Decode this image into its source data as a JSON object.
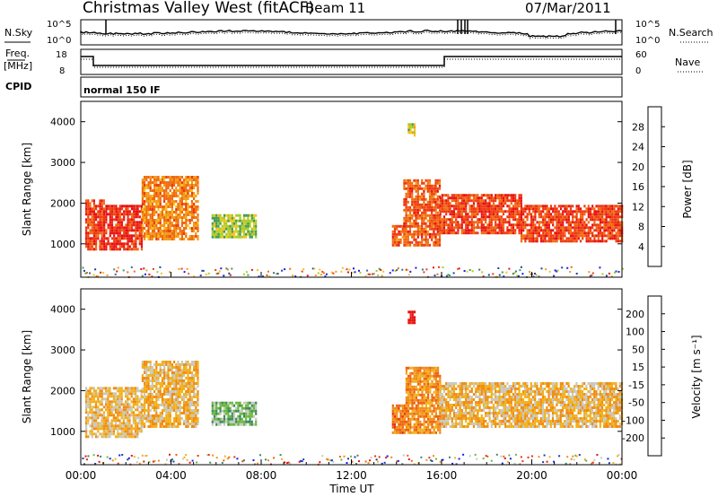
{
  "header": {
    "title": "Christmas Valley West (fitACF)",
    "beam": "Beam 11",
    "date": "07/Mar/2011"
  },
  "param_panels": {
    "nsky_label": "N.Sky",
    "nsky_ticks": [
      "10^5",
      "10^0"
    ],
    "nsearch_label": "N.Search",
    "nsearch_ticks": [
      "10^5",
      "10^0"
    ],
    "freq_label_1": "Freq.",
    "freq_label_2": "[MHz]",
    "freq_ticks": [
      "18",
      "8"
    ],
    "nave_label": "Nave",
    "nave_ticks": [
      "60",
      "0"
    ],
    "cpid_label": "CPID",
    "cpid_text": "normal 150 IF"
  },
  "colors": {
    "power_scale": [
      "#1a1aee",
      "#1e3fa8",
      "#3a6e8a",
      "#3f9a5a",
      "#a8cc22",
      "#f6c21a",
      "#f29a14",
      "#f06a10",
      "#ee3a10",
      "#e81010"
    ],
    "velocity_scale": [
      "#1a1aee",
      "#1e3fa8",
      "#3a8a5a",
      "#6ab83a",
      "#c8c8c0",
      "#f2b01a",
      "#f08c14",
      "#ee6010",
      "#ea3010",
      "#e81010"
    ]
  },
  "chart_data": [
    {
      "type": "heatmap",
      "title": "Power",
      "xlabel": "Time UT",
      "ylabel": "Slant Range [km]",
      "x_ticks": [
        "00:00",
        "04:00",
        "08:00",
        "12:00",
        "16:00",
        "20:00",
        "00:00"
      ],
      "x_range_hours": [
        0,
        24
      ],
      "y_ticks": [
        1000,
        2000,
        3000,
        4000
      ],
      "y_range_km": [
        180,
        4500
      ],
      "colorbar_label": "Power [dB]",
      "colorbar_ticks": [
        "4",
        "8",
        "12",
        "16",
        "20",
        "24",
        "28"
      ],
      "regions": [
        {
          "t0": 0.2,
          "t1": 1.0,
          "r0": 900,
          "r1": 2100,
          "level": 0.85
        },
        {
          "t0": 1.0,
          "t1": 2.7,
          "r0": 900,
          "r1": 2000,
          "level": 0.9
        },
        {
          "t0": 2.7,
          "t1": 5.2,
          "r0": 1150,
          "r1": 2700,
          "level": 0.7
        },
        {
          "t0": 5.8,
          "t1": 7.8,
          "r0": 1200,
          "r1": 1750,
          "level": 0.45
        },
        {
          "t0": 13.8,
          "t1": 14.3,
          "r0": 1000,
          "r1": 1500,
          "level": 0.8
        },
        {
          "t0": 14.3,
          "t1": 15.9,
          "r0": 1000,
          "r1": 2600,
          "level": 0.8
        },
        {
          "t0": 14.5,
          "t1": 14.8,
          "r0": 3700,
          "r1": 4000,
          "level": 0.5
        },
        {
          "t0": 15.9,
          "t1": 19.5,
          "r0": 1300,
          "r1": 2250,
          "level": 0.85
        },
        {
          "t0": 19.5,
          "t1": 24.0,
          "r0": 1100,
          "r1": 2000,
          "level": 0.85
        }
      ],
      "ground_band": {
        "t0": 0,
        "t1": 24,
        "r0": 200,
        "r1": 450
      }
    },
    {
      "type": "heatmap",
      "title": "Velocity",
      "xlabel": "Time UT",
      "ylabel": "Slant Range [km]",
      "x_ticks": [
        "00:00",
        "04:00",
        "08:00",
        "12:00",
        "16:00",
        "20:00",
        "00:00"
      ],
      "x_range_hours": [
        0,
        24
      ],
      "y_ticks": [
        1000,
        2000,
        3000,
        4000
      ],
      "y_range_km": [
        180,
        4500
      ],
      "colorbar_label": "Velocity [m s⁻¹]",
      "colorbar_ticks": [
        "200",
        "100",
        "50",
        "15",
        "-15",
        "-50",
        "-100",
        "-200"
      ],
      "regions": [
        {
          "t0": 0.2,
          "t1": 2.7,
          "r0": 900,
          "r1": 2100,
          "level": 0.45
        },
        {
          "t0": 2.7,
          "t1": 5.2,
          "r0": 1150,
          "r1": 2750,
          "level": 0.45
        },
        {
          "t0": 5.8,
          "t1": 7.8,
          "r0": 1200,
          "r1": 1750,
          "level": 0.65
        },
        {
          "t0": 13.8,
          "t1": 14.4,
          "r0": 1000,
          "r1": 1700,
          "level": 0.3
        },
        {
          "t0": 14.4,
          "t1": 15.9,
          "r0": 1000,
          "r1": 2600,
          "level": 0.35
        },
        {
          "t0": 14.5,
          "t1": 14.8,
          "r0": 3700,
          "r1": 4000,
          "level": 0.0
        },
        {
          "t0": 15.9,
          "t1": 24.0,
          "r0": 1150,
          "r1": 2250,
          "level": 0.45
        }
      ],
      "ground_band": {
        "t0": 0,
        "t1": 24,
        "r0": 200,
        "r1": 450
      }
    }
  ]
}
